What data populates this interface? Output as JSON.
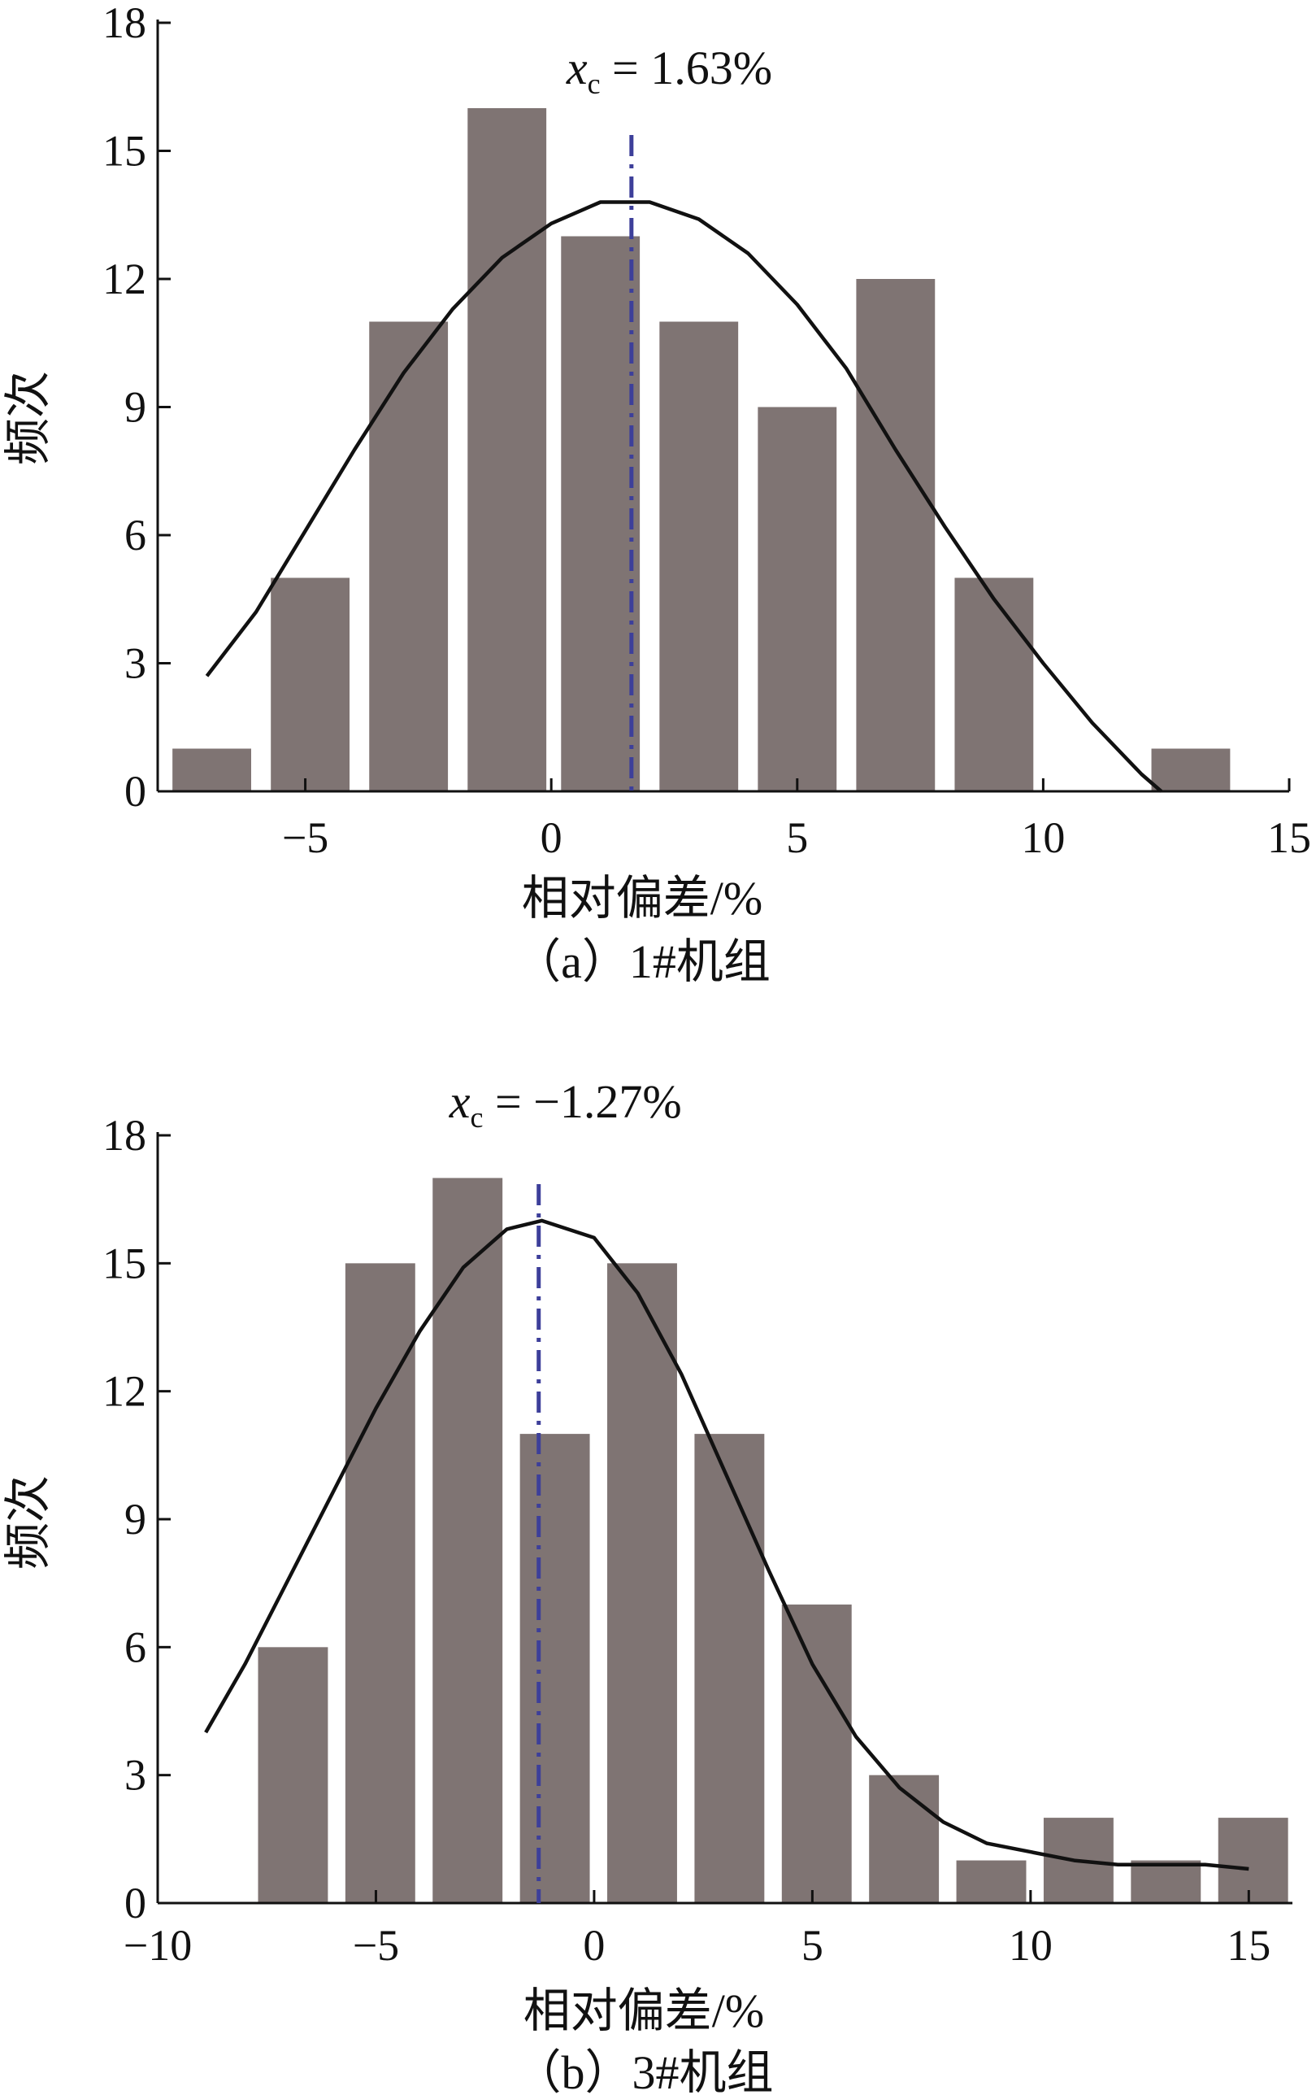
{
  "chart_data": [
    {
      "type": "bar",
      "xlabel": "相对偏差/%",
      "ylabel": "频次",
      "caption": "（a）1#机组",
      "xlim": [
        -8,
        15
      ],
      "ylim": [
        0,
        18
      ],
      "xticks": [
        "-5",
        "0",
        "5",
        "10",
        "15"
      ],
      "yticks": [
        "0",
        "3",
        "6",
        "9",
        "12",
        "15",
        "18"
      ],
      "bar_color": "#7f7473",
      "bar_width": 1.6,
      "bars": [
        {
          "x": -6.9,
          "value": 1
        },
        {
          "x": -4.9,
          "value": 5
        },
        {
          "x": -2.9,
          "value": 11
        },
        {
          "x": -0.9,
          "value": 16
        },
        {
          "x": 1.0,
          "value": 13
        },
        {
          "x": 3.0,
          "value": 11
        },
        {
          "x": 5.0,
          "value": 9
        },
        {
          "x": 7.0,
          "value": 12
        },
        {
          "x": 9.0,
          "value": 5
        },
        {
          "x": 13.0,
          "value": 1
        }
      ],
      "fit_curve": {
        "color": "#111111",
        "points": [
          [
            -7,
            2.7
          ],
          [
            -6,
            4.2
          ],
          [
            -5,
            6.1
          ],
          [
            -4,
            8.0
          ],
          [
            -3,
            9.8
          ],
          [
            -2,
            11.3
          ],
          [
            -1,
            12.5
          ],
          [
            0,
            13.3
          ],
          [
            1,
            13.8
          ],
          [
            2,
            13.8
          ],
          [
            3,
            13.4
          ],
          [
            4,
            12.6
          ],
          [
            5,
            11.4
          ],
          [
            6,
            9.9
          ],
          [
            7,
            8.0
          ],
          [
            8,
            6.2
          ],
          [
            9,
            4.5
          ],
          [
            10,
            3.0
          ],
          [
            11,
            1.6
          ],
          [
            12,
            0.4
          ],
          [
            12.4,
            0.0
          ]
        ]
      },
      "annotation": {
        "var": "x",
        "sub": "c",
        "text": " = 1.63%",
        "x": 1.63,
        "color": "#3d3f9a"
      }
    },
    {
      "type": "bar",
      "xlabel": "相对偏差/%",
      "ylabel": "频次",
      "caption": "（b）3#机组",
      "xlim": [
        -10,
        16
      ],
      "ylim": [
        0,
        18
      ],
      "xticks": [
        "-10",
        "-5",
        "0",
        "5",
        "10",
        "15"
      ],
      "yticks": [
        "0",
        "3",
        "6",
        "9",
        "12",
        "15",
        "18"
      ],
      "bar_color": "#7f7473",
      "bar_width": 1.6,
      "bars": [
        {
          "x": -6.9,
          "value": 6
        },
        {
          "x": -4.9,
          "value": 15
        },
        {
          "x": -2.9,
          "value": 17
        },
        {
          "x": -0.9,
          "value": 11
        },
        {
          "x": 1.1,
          "value": 15
        },
        {
          "x": 3.1,
          "value": 11
        },
        {
          "x": 5.1,
          "value": 7
        },
        {
          "x": 7.1,
          "value": 3
        },
        {
          "x": 9.1,
          "value": 1
        },
        {
          "x": 11.1,
          "value": 2
        },
        {
          "x": 13.1,
          "value": 1
        },
        {
          "x": 15.1,
          "value": 2
        }
      ],
      "fit_curve": {
        "color": "#111111",
        "points": [
          [
            -8.9,
            4.0
          ],
          [
            -8,
            5.6
          ],
          [
            -7,
            7.6
          ],
          [
            -6,
            9.6
          ],
          [
            -5,
            11.6
          ],
          [
            -4,
            13.4
          ],
          [
            -3,
            14.9
          ],
          [
            -2,
            15.8
          ],
          [
            -1.2,
            16.0
          ],
          [
            0,
            15.6
          ],
          [
            1,
            14.3
          ],
          [
            2,
            12.4
          ],
          [
            3,
            10.1
          ],
          [
            4,
            7.8
          ],
          [
            5,
            5.6
          ],
          [
            6,
            3.9
          ],
          [
            7,
            2.7
          ],
          [
            8,
            1.9
          ],
          [
            9,
            1.4
          ],
          [
            10,
            1.2
          ],
          [
            11,
            1.0
          ],
          [
            12,
            0.9
          ],
          [
            13,
            0.9
          ],
          [
            14,
            0.9
          ],
          [
            15,
            0.8
          ]
        ]
      },
      "annotation": {
        "var": "x",
        "sub": "c",
        "text": " = −1.27%",
        "x": -1.27,
        "color": "#3d3f9a"
      }
    }
  ]
}
